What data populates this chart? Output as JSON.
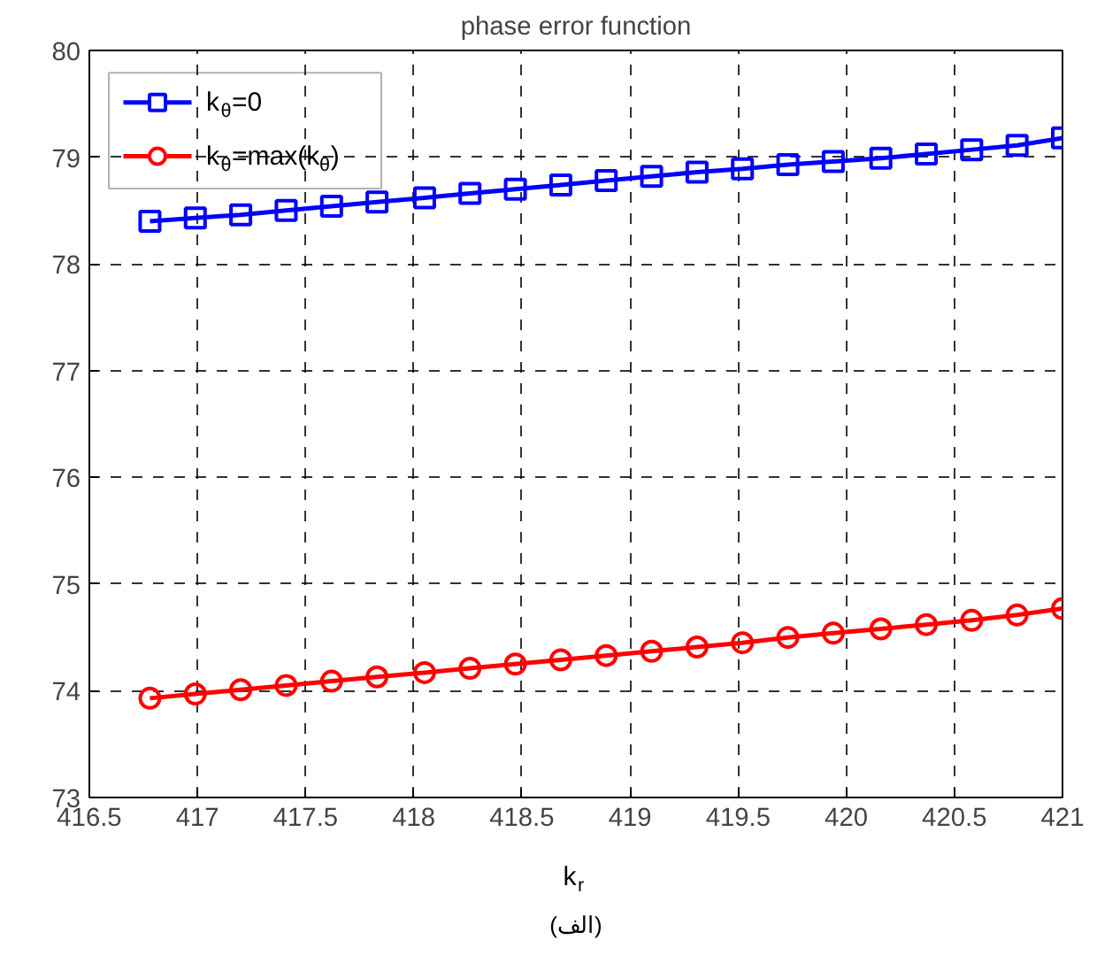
{
  "chart_data": {
    "type": "line",
    "title": "phase error function",
    "xlabel": "k$_{r}$",
    "x": [
      416.78,
      416.99,
      417.2,
      417.41,
      417.62,
      417.83,
      418.05,
      418.26,
      418.47,
      418.68,
      418.89,
      419.1,
      419.31,
      419.52,
      419.73,
      419.94,
      420.16,
      420.37,
      420.58,
      420.79,
      421.0
    ],
    "series": [
      {
        "name": "k$_{θ}$=0",
        "color": "#0000ff",
        "marker": "square",
        "values": [
          78.4,
          78.43,
          78.46,
          78.5,
          78.54,
          78.58,
          78.62,
          78.66,
          78.7,
          78.74,
          78.78,
          78.82,
          78.86,
          78.89,
          78.93,
          78.96,
          78.99,
          79.03,
          79.07,
          79.11,
          79.18
        ]
      },
      {
        "name": "k$_{θ}$=max(k$_{θ}$)",
        "color": "#ff0000",
        "marker": "circle",
        "values": [
          73.93,
          73.97,
          74.01,
          74.05,
          74.09,
          74.13,
          74.17,
          74.21,
          74.25,
          74.29,
          74.33,
          74.37,
          74.41,
          74.45,
          74.5,
          74.54,
          74.58,
          74.62,
          74.66,
          74.71,
          74.77
        ]
      }
    ],
    "xlim": [
      416.5,
      421
    ],
    "xticks": [
      416.5,
      417,
      417.5,
      418,
      418.5,
      419,
      419.5,
      420,
      420.5,
      421
    ],
    "ylim": [
      73,
      80
    ],
    "yticks": [
      73,
      74,
      75,
      76,
      77,
      78,
      79,
      80
    ],
    "grid": true,
    "legend": "top left",
    "line_style": "solid",
    "annotations": [
      "(الف)"
    ]
  }
}
